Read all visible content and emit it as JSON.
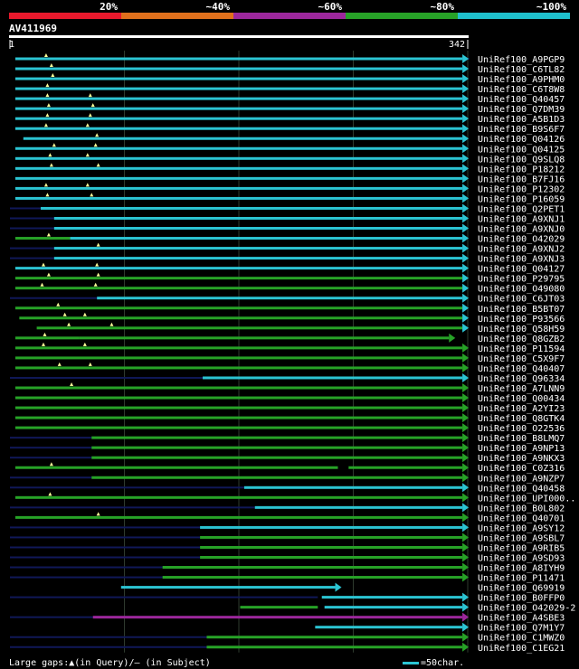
{
  "legend": [
    {
      "label": "20%",
      "color": "#e8192c"
    },
    {
      "label": "~40%",
      "color": "#e0701c"
    },
    {
      "label": "~60%",
      "color": "#9c279c"
    },
    {
      "label": "~80%",
      "color": "#27a227"
    },
    {
      "label": "~100%",
      "color": "#1fc0cc"
    }
  ],
  "query": {
    "name": "AV411969",
    "start_label": "1",
    "end_label": "342",
    "length": 342
  },
  "colors": {
    "cyan": "#2bc4d2",
    "green": "#27a227",
    "purple": "#9c279c",
    "gap": "#101858",
    "tri": "#ffff99",
    "bar": "#ffffff"
  },
  "hits": [
    {
      "label": "UniRef100_A9PGP9",
      "segs": [
        [
          4,
          338,
          "c"
        ]
      ],
      "gaps": [
        [
          41,
          343
        ]
      ],
      "tris": [
        27
      ],
      "arrow": "c"
    },
    {
      "label": "UniRef100_C6TL82",
      "segs": [
        [
          4,
          338,
          "c"
        ]
      ],
      "gaps": [],
      "tris": [
        31
      ],
      "arrow": "c"
    },
    {
      "label": "UniRef100_A9PHM0",
      "segs": [
        [
          4,
          338,
          "c"
        ]
      ],
      "gaps": [],
      "tris": [
        32
      ],
      "arrow": "c"
    },
    {
      "label": "UniRef100_C6T8W8",
      "segs": [
        [
          4,
          338,
          "c"
        ]
      ],
      "gaps": [],
      "tris": [
        28
      ],
      "arrow": "c"
    },
    {
      "label": "UniRef100_Q40457",
      "segs": [
        [
          4,
          338,
          "c"
        ]
      ],
      "gaps": [],
      "tris": [
        28,
        60
      ],
      "arrow": "c"
    },
    {
      "label": "UniRef100_Q7DM39",
      "segs": [
        [
          4,
          338,
          "c"
        ]
      ],
      "gaps": [],
      "tris": [
        29,
        62
      ],
      "arrow": "c"
    },
    {
      "label": "UniRef100_A5B1D3",
      "segs": [
        [
          4,
          338,
          "c"
        ]
      ],
      "gaps": [],
      "tris": [
        28,
        60
      ],
      "arrow": "c"
    },
    {
      "label": "UniRef100_B9S6F7",
      "segs": [
        [
          4,
          338,
          "c"
        ]
      ],
      "gaps": [],
      "tris": [
        27,
        58
      ],
      "arrow": "c"
    },
    {
      "label": "UniRef100_Q04126",
      "segs": [
        [
          10,
          338,
          "c"
        ]
      ],
      "gaps": [],
      "tris": [
        65
      ],
      "arrow": "c"
    },
    {
      "label": "UniRef100_Q04125",
      "segs": [
        [
          4,
          338,
          "c"
        ]
      ],
      "gaps": [],
      "tris": [
        33,
        64
      ],
      "arrow": "c"
    },
    {
      "label": "UniRef100_Q9SLQ8",
      "segs": [
        [
          4,
          338,
          "c"
        ]
      ],
      "gaps": [],
      "tris": [
        30,
        58
      ],
      "arrow": "c"
    },
    {
      "label": "UniRef100_P18212",
      "segs": [
        [
          4,
          338,
          "c"
        ]
      ],
      "gaps": [],
      "tris": [
        31,
        66
      ],
      "arrow": "c"
    },
    {
      "label": "UniRef100_B7FJ16",
      "segs": [
        [
          4,
          338,
          "c"
        ]
      ],
      "gaps": [],
      "tris": [],
      "arrow": "c"
    },
    {
      "label": "UniRef100_P12302",
      "segs": [
        [
          4,
          338,
          "c"
        ]
      ],
      "gaps": [],
      "tris": [
        27,
        58
      ],
      "arrow": "c"
    },
    {
      "label": "UniRef100_P16059",
      "segs": [
        [
          4,
          338,
          "c"
        ]
      ],
      "gaps": [
        [
          45,
          55
        ]
      ],
      "tris": [
        28,
        61
      ],
      "arrow": "c"
    },
    {
      "label": "UniRef100_Q2PET1",
      "segs": [
        [
          23,
          338,
          "c"
        ]
      ],
      "gaps": [
        [
          0,
          23
        ]
      ],
      "tris": [],
      "arrow": "c"
    },
    {
      "label": "UniRef100_A9XNJ1",
      "segs": [
        [
          33,
          338,
          "c"
        ]
      ],
      "gaps": [
        [
          0,
          33
        ]
      ],
      "tris": [],
      "arrow": "c"
    },
    {
      "label": "UniRef100_A9XNJ0",
      "segs": [
        [
          33,
          338,
          "c"
        ]
      ],
      "gaps": [
        [
          0,
          33
        ]
      ],
      "tris": [],
      "arrow": "c"
    },
    {
      "label": "UniRef100_O42029",
      "segs": [
        [
          4,
          45,
          "g"
        ],
        [
          45,
          338,
          "c"
        ]
      ],
      "gaps": [],
      "tris": [
        29
      ],
      "arrow": "c"
    },
    {
      "label": "UniRef100_A9XNJ2",
      "segs": [
        [
          33,
          338,
          "c"
        ]
      ],
      "gaps": [
        [
          0,
          33
        ]
      ],
      "tris": [
        66
      ],
      "arrow": "c"
    },
    {
      "label": "UniRef100_A9XNJ3",
      "segs": [
        [
          33,
          338,
          "c"
        ]
      ],
      "gaps": [
        [
          0,
          33
        ]
      ],
      "tris": [],
      "arrow": "c"
    },
    {
      "label": "UniRef100_Q04127",
      "segs": [
        [
          4,
          338,
          "c"
        ]
      ],
      "gaps": [],
      "tris": [
        25,
        65
      ],
      "arrow": "c"
    },
    {
      "label": "UniRef100_P29795",
      "segs": [
        [
          4,
          338,
          "g"
        ]
      ],
      "gaps": [],
      "tris": [
        29,
        66
      ],
      "arrow": "c"
    },
    {
      "label": "UniRef100_O49080",
      "segs": [
        [
          4,
          338,
          "g"
        ]
      ],
      "gaps": [],
      "tris": [
        24,
        64
      ],
      "arrow": "c"
    },
    {
      "label": "UniRef100_C6JT03",
      "segs": [
        [
          65,
          338,
          "c"
        ]
      ],
      "gaps": [
        [
          0,
          65
        ]
      ],
      "tris": [],
      "arrow": "c"
    },
    {
      "label": "UniRef100_B5BT07",
      "segs": [
        [
          4,
          338,
          "g"
        ]
      ],
      "gaps": [],
      "tris": [
        36
      ],
      "arrow": "c"
    },
    {
      "label": "UniRef100_P93566",
      "segs": [
        [
          7,
          338,
          "g"
        ]
      ],
      "gaps": [],
      "tris": [
        41,
        56
      ],
      "arrow": "c"
    },
    {
      "label": "UniRef100_Q58H59",
      "segs": [
        [
          20,
          338,
          "g"
        ]
      ],
      "gaps": [],
      "tris": [
        44,
        76
      ],
      "arrow": "c"
    },
    {
      "label": "UniRef100_Q8GZB2",
      "segs": [
        [
          4,
          52,
          "g"
        ],
        [
          52,
          328,
          "g"
        ]
      ],
      "gaps": [],
      "tris": [
        26
      ],
      "arrow": "g"
    },
    {
      "label": "UniRef100_P11594",
      "segs": [
        [
          4,
          338,
          "g"
        ]
      ],
      "gaps": [],
      "tris": [
        25,
        56
      ],
      "arrow": "g"
    },
    {
      "label": "UniRef100_C5X9F7",
      "segs": [
        [
          4,
          338,
          "g"
        ]
      ],
      "gaps": [],
      "tris": [],
      "arrow": "g"
    },
    {
      "label": "UniRef100_Q40407",
      "segs": [
        [
          4,
          338,
          "g"
        ]
      ],
      "gaps": [],
      "tris": [
        37,
        60
      ],
      "arrow": "g"
    },
    {
      "label": "UniRef100_Q96334",
      "segs": [
        [
          144,
          338,
          "c"
        ]
      ],
      "gaps": [
        [
          0,
          144
        ]
      ],
      "tris": [],
      "arrow": "c"
    },
    {
      "label": "UniRef100_A7LNN9",
      "segs": [
        [
          4,
          338,
          "g"
        ]
      ],
      "gaps": [],
      "tris": [
        46
      ],
      "arrow": "g"
    },
    {
      "label": "UniRef100_Q00434",
      "segs": [
        [
          4,
          338,
          "g"
        ]
      ],
      "gaps": [],
      "tris": [],
      "arrow": "g"
    },
    {
      "label": "UniRef100_A2YI23",
      "segs": [
        [
          4,
          338,
          "g"
        ]
      ],
      "gaps": [],
      "tris": [],
      "arrow": "g"
    },
    {
      "label": "UniRef100_Q8GTK4",
      "segs": [
        [
          4,
          338,
          "g"
        ]
      ],
      "gaps": [],
      "tris": [],
      "arrow": "g"
    },
    {
      "label": "UniRef100_O22536",
      "segs": [
        [
          4,
          338,
          "g"
        ]
      ],
      "gaps": [],
      "tris": [],
      "arrow": "g"
    },
    {
      "label": "UniRef100_B8LMQ7",
      "segs": [
        [
          61,
          338,
          "g"
        ]
      ],
      "gaps": [
        [
          0,
          61
        ]
      ],
      "tris": [],
      "arrow": "g"
    },
    {
      "label": "UniRef100_A9NP13",
      "segs": [
        [
          61,
          338,
          "g"
        ]
      ],
      "gaps": [
        [
          0,
          61
        ]
      ],
      "tris": [],
      "arrow": "g"
    },
    {
      "label": "UniRef100_A9NKX3",
      "segs": [
        [
          61,
          338,
          "g"
        ]
      ],
      "gaps": [
        [
          0,
          61
        ]
      ],
      "tris": [],
      "arrow": "g"
    },
    {
      "label": "UniRef100_C0Z316",
      "segs": [
        [
          4,
          245,
          "g"
        ],
        [
          253,
          338,
          "g"
        ]
      ],
      "gaps": [],
      "tris": [
        31
      ],
      "arrow": "g"
    },
    {
      "label": "UniRef100_A9NZP7",
      "segs": [
        [
          61,
          338,
          "g"
        ]
      ],
      "gaps": [
        [
          0,
          61
        ]
      ],
      "tris": [],
      "arrow": "g"
    },
    {
      "label": "UniRef100_Q40458",
      "segs": [
        [
          175,
          338,
          "c"
        ]
      ],
      "gaps": [
        [
          0,
          175
        ]
      ],
      "tris": [],
      "arrow": "c"
    },
    {
      "label": "UniRef100_UPI000..",
      "segs": [
        [
          4,
          338,
          "g"
        ]
      ],
      "gaps": [],
      "tris": [
        30
      ],
      "arrow": "g"
    },
    {
      "label": "UniRef100_B0L802",
      "segs": [
        [
          183,
          338,
          "c"
        ]
      ],
      "gaps": [
        [
          0,
          183
        ]
      ],
      "tris": [],
      "arrow": "c"
    },
    {
      "label": "UniRef100_Q40701",
      "segs": [
        [
          4,
          338,
          "g"
        ]
      ],
      "gaps": [],
      "tris": [
        66
      ],
      "arrow": "g"
    },
    {
      "label": "UniRef100_A9SY12",
      "segs": [
        [
          142,
          338,
          "c"
        ]
      ],
      "gaps": [
        [
          0,
          142
        ]
      ],
      "tris": [],
      "arrow": "c"
    },
    {
      "label": "UniRef100_A9SBL7",
      "segs": [
        [
          142,
          338,
          "g"
        ]
      ],
      "gaps": [
        [
          0,
          142
        ]
      ],
      "tris": [],
      "arrow": "g"
    },
    {
      "label": "UniRef100_A9RIB5",
      "segs": [
        [
          142,
          338,
          "g"
        ]
      ],
      "gaps": [
        [
          0,
          142
        ]
      ],
      "tris": [],
      "arrow": "g"
    },
    {
      "label": "UniRef100_A9SD93",
      "segs": [
        [
          142,
          338,
          "g"
        ]
      ],
      "gaps": [
        [
          0,
          142
        ]
      ],
      "tris": [],
      "arrow": "g"
    },
    {
      "label": "UniRef100_A8IYH9",
      "segs": [
        [
          114,
          338,
          "g"
        ]
      ],
      "gaps": [
        [
          0,
          114
        ]
      ],
      "tris": [],
      "arrow": "g"
    },
    {
      "label": "UniRef100_P11471",
      "segs": [
        [
          114,
          338,
          "g"
        ]
      ],
      "gaps": [
        [
          0,
          114
        ]
      ],
      "tris": [],
      "arrow": "g"
    },
    {
      "label": "UniRef100_Q69919",
      "segs": [
        [
          83,
          243,
          "c"
        ]
      ],
      "gaps": [],
      "tris": [],
      "arrow": "c"
    },
    {
      "label": "UniRef100_B0FFP0",
      "segs": [
        [
          233,
          338,
          "c"
        ]
      ],
      "gaps": [
        [
          0,
          230
        ]
      ],
      "tris": [],
      "arrow": "c"
    },
    {
      "label": "UniRef100_O42029-2",
      "segs": [
        [
          172,
          230,
          "g"
        ],
        [
          235,
          338,
          "c"
        ]
      ],
      "gaps": [],
      "tris": [],
      "arrow": "c"
    },
    {
      "label": "UniRef100_A4SBE3",
      "segs": [
        [
          62,
          338,
          "p"
        ]
      ],
      "gaps": [
        [
          0,
          62
        ]
      ],
      "tris": [],
      "arrow": "p"
    },
    {
      "label": "UniRef100_Q7M1Y7",
      "segs": [
        [
          228,
          338,
          "c"
        ]
      ],
      "gaps": [],
      "tris": [],
      "arrow": "c"
    },
    {
      "label": "UniRef100_C1MWZ0",
      "segs": [
        [
          147,
          338,
          "g"
        ]
      ],
      "gaps": [
        [
          0,
          147
        ]
      ],
      "tris": [],
      "arrow": "g"
    },
    {
      "label": "UniRef100_C1EG21",
      "segs": [
        [
          147,
          338,
          "g"
        ]
      ],
      "gaps": [
        [
          0,
          147
        ]
      ],
      "tris": [],
      "arrow": "g"
    }
  ],
  "footer": {
    "gaps_text": "Large gaps:▲(in Query)/— (in Subject)",
    "scale_text": "=50char."
  }
}
